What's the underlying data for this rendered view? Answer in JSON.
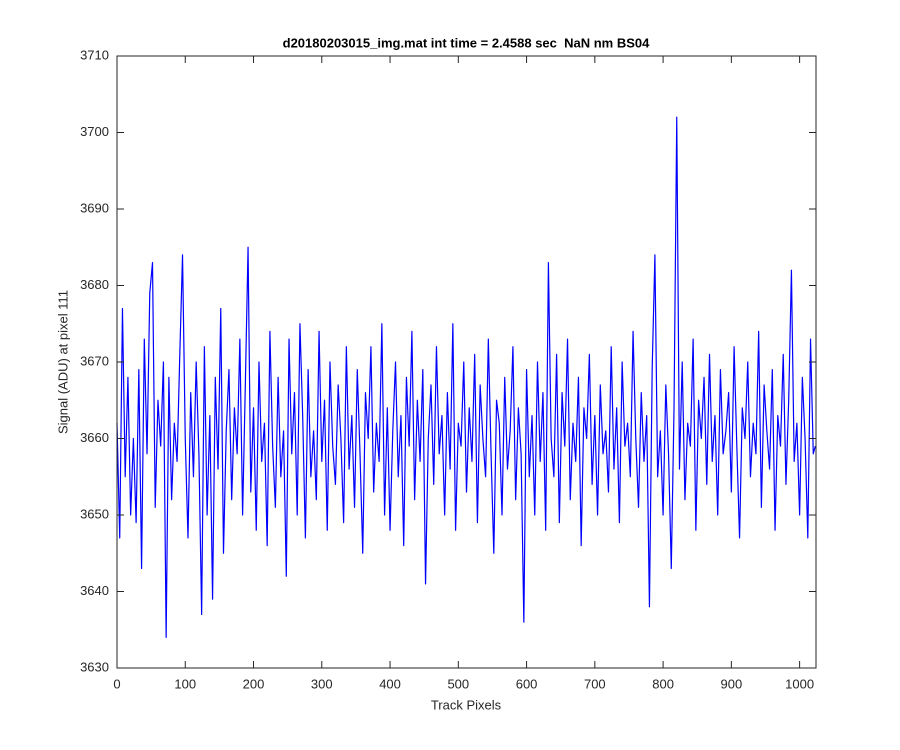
{
  "chart_data": {
    "type": "line",
    "title": "d20180203015_img.mat int time = 2.4588 sec  NaN nm BS04",
    "x_label": "Track Pixels",
    "y_label": "Signal (ADU) at pixel 111",
    "xlim": [
      0,
      1024
    ],
    "xticks": [
      0,
      100,
      200,
      300,
      400,
      500,
      600,
      700,
      800,
      900,
      1000
    ],
    "ylim": [
      3630,
      3710
    ],
    "yticks": [
      3630,
      3640,
      3650,
      3660,
      3670,
      3680,
      3690,
      3700,
      3710
    ],
    "x": [
      0,
      4,
      8,
      12,
      16,
      20,
      24,
      28,
      32,
      36,
      40,
      44,
      48,
      52,
      56,
      60,
      64,
      68,
      72,
      76,
      80,
      84,
      88,
      92,
      96,
      100,
      104,
      108,
      112,
      116,
      120,
      124,
      128,
      132,
      136,
      140,
      144,
      148,
      152,
      156,
      160,
      164,
      168,
      172,
      176,
      180,
      184,
      188,
      192,
      196,
      200,
      204,
      208,
      212,
      216,
      220,
      224,
      228,
      232,
      236,
      240,
      244,
      248,
      252,
      256,
      260,
      264,
      268,
      272,
      276,
      280,
      284,
      288,
      292,
      296,
      300,
      304,
      308,
      312,
      316,
      320,
      324,
      328,
      332,
      336,
      340,
      344,
      348,
      352,
      356,
      360,
      364,
      368,
      372,
      376,
      380,
      384,
      388,
      392,
      396,
      400,
      404,
      408,
      412,
      416,
      420,
      424,
      428,
      432,
      436,
      440,
      444,
      448,
      452,
      456,
      460,
      464,
      468,
      472,
      476,
      480,
      484,
      488,
      492,
      496,
      500,
      504,
      508,
      512,
      516,
      520,
      524,
      528,
      532,
      536,
      540,
      544,
      548,
      552,
      556,
      560,
      564,
      568,
      572,
      576,
      580,
      584,
      588,
      592,
      596,
      600,
      604,
      608,
      612,
      616,
      620,
      624,
      628,
      632,
      636,
      640,
      644,
      648,
      652,
      656,
      660,
      664,
      668,
      672,
      676,
      680,
      684,
      688,
      692,
      696,
      700,
      704,
      708,
      712,
      716,
      720,
      724,
      728,
      732,
      736,
      740,
      744,
      748,
      752,
      756,
      760,
      764,
      768,
      772,
      776,
      780,
      784,
      788,
      792,
      796,
      800,
      804,
      808,
      812,
      816,
      820,
      824,
      828,
      832,
      836,
      840,
      844,
      848,
      852,
      856,
      860,
      864,
      868,
      872,
      876,
      880,
      884,
      888,
      892,
      896,
      900,
      904,
      908,
      912,
      916,
      920,
      924,
      928,
      932,
      936,
      940,
      944,
      948,
      952,
      956,
      960,
      964,
      968,
      972,
      976,
      980,
      984,
      988,
      992,
      996,
      1000,
      1004,
      1008,
      1012,
      1016,
      1020,
      1023
    ],
    "series": [
      {
        "color": "#0000ff",
        "values": [
          3662,
          3647,
          3677,
          3655,
          3668,
          3650,
          3660,
          3649,
          3669,
          3643,
          3673,
          3658,
          3679,
          3683,
          3651,
          3665,
          3659,
          3670,
          3634,
          3668,
          3652,
          3662,
          3657,
          3671,
          3684,
          3660,
          3647,
          3666,
          3655,
          3670,
          3658,
          3637,
          3672,
          3650,
          3663,
          3639,
          3668,
          3656,
          3677,
          3645,
          3661,
          3669,
          3652,
          3664,
          3658,
          3673,
          3650,
          3667,
          3685,
          3653,
          3664,
          3648,
          3670,
          3657,
          3662,
          3646,
          3674,
          3659,
          3651,
          3668,
          3655,
          3661,
          3642,
          3673,
          3658,
          3666,
          3650,
          3675,
          3663,
          3647,
          3669,
          3655,
          3661,
          3652,
          3674,
          3657,
          3665,
          3648,
          3670,
          3659,
          3654,
          3667,
          3660,
          3649,
          3672,
          3656,
          3663,
          3651,
          3669,
          3658,
          3645,
          3666,
          3660,
          3672,
          3653,
          3662,
          3657,
          3675,
          3650,
          3664,
          3648,
          3661,
          3670,
          3655,
          3663,
          3646,
          3668,
          3659,
          3674,
          3652,
          3665,
          3657,
          3669,
          3641,
          3660,
          3667,
          3654,
          3672,
          3658,
          3663,
          3650,
          3666,
          3656,
          3675,
          3648,
          3662,
          3659,
          3670,
          3653,
          3664,
          3657,
          3671,
          3649,
          3667,
          3660,
          3655,
          3673,
          3658,
          3645,
          3665,
          3662,
          3650,
          3668,
          3656,
          3661,
          3672,
          3652,
          3664,
          3658,
          3636,
          3669,
          3655,
          3663,
          3650,
          3670,
          3657,
          3666,
          3648,
          3683,
          3660,
          3655,
          3671,
          3649,
          3666,
          3659,
          3673,
          3652,
          3662,
          3657,
          3668,
          3646,
          3664,
          3660,
          3671,
          3654,
          3663,
          3650,
          3667,
          3658,
          3661,
          3653,
          3672,
          3656,
          3664,
          3649,
          3670,
          3659,
          3662,
          3655,
          3674,
          3660,
          3651,
          3666,
          3657,
          3663,
          3638,
          3669,
          3684,
          3655,
          3661,
          3650,
          3667,
          3658,
          3643,
          3664,
          3702,
          3656,
          3670,
          3652,
          3662,
          3659,
          3673,
          3648,
          3665,
          3660,
          3668,
          3654,
          3671,
          3657,
          3663,
          3650,
          3669,
          3658,
          3661,
          3666,
          3653,
          3672,
          3659,
          3647,
          3664,
          3660,
          3670,
          3655,
          3662,
          3658,
          3674,
          3651,
          3667,
          3661,
          3656,
          3669,
          3648,
          3663,
          3659,
          3671,
          3654,
          3665,
          3682,
          3657,
          3662,
          3650,
          3668,
          3660,
          3647,
          3673,
          3658,
          3659
        ]
      }
    ]
  }
}
